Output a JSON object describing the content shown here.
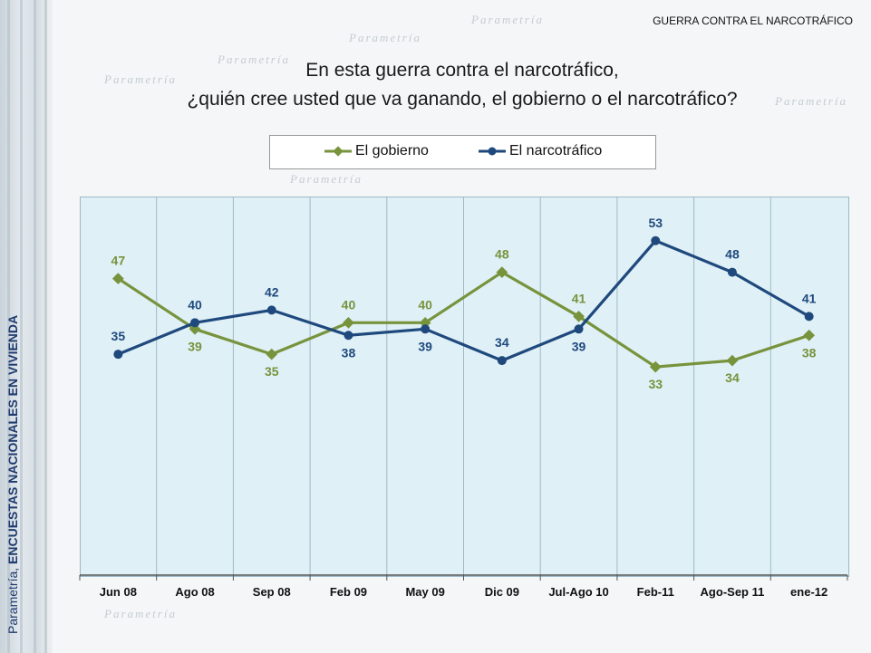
{
  "header": {
    "tag": "GUERRA CONTRA EL NARCOTRÁFICO"
  },
  "side_label": {
    "prefix": "Parametría, ",
    "bold": "ENCUESTAS NACIONALES EN VIVIENDA"
  },
  "watermark_text": "Parametría",
  "colors": {
    "gobierno": "#77933c",
    "narco": "#1f497d",
    "plot_bg": "#dff0f7"
  },
  "chart_data": {
    "type": "line",
    "title_line1": "En esta guerra contra el narcotráfico,",
    "title_line2": "¿quién cree usted que va ganando, el gobierno o el narcotráfico?",
    "categories": [
      "Jun 08",
      "Ago 08",
      "Sep 08",
      "Feb 09",
      "May 09",
      "Dic 09",
      "Jul-Ago 10",
      "Feb-11",
      "Ago-Sep 11",
      "ene-12"
    ],
    "series": [
      {
        "name": "El gobierno",
        "values": [
          47,
          39,
          35,
          40,
          40,
          48,
          41,
          33,
          34,
          38
        ]
      },
      {
        "name": "El narcotráfico",
        "values": [
          35,
          40,
          42,
          38,
          39,
          34,
          39,
          53,
          48,
          41
        ]
      }
    ],
    "ylim": [
      0,
      60
    ],
    "legend_position": "top"
  }
}
